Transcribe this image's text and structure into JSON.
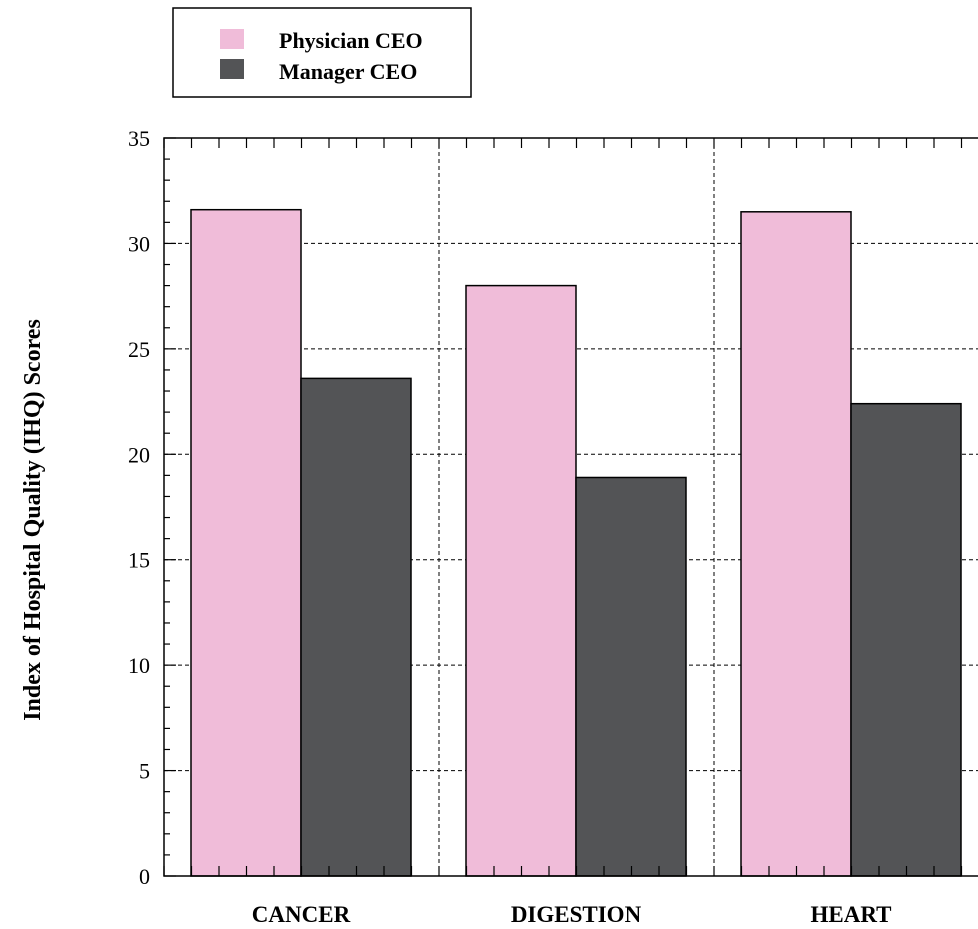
{
  "chart_data": {
    "type": "bar",
    "title": "",
    "xlabel": "",
    "ylabel": "Index of Hospital Quality (IHQ) Scores",
    "ylim": [
      0,
      35
    ],
    "yticks": [
      "0",
      "5",
      "10",
      "15",
      "20",
      "25",
      "30",
      "35"
    ],
    "categories": [
      "CANCER",
      "DIGESTION",
      "HEART"
    ],
    "series": [
      {
        "name": "Physician CEO",
        "color": "#f0bcd9",
        "values": [
          31.6,
          28.0,
          31.5
        ]
      },
      {
        "name": "Manager CEO",
        "color": "#535456",
        "values": [
          23.6,
          18.9,
          22.4
        ]
      }
    ],
    "grid": true,
    "legend_position": "top-left"
  }
}
